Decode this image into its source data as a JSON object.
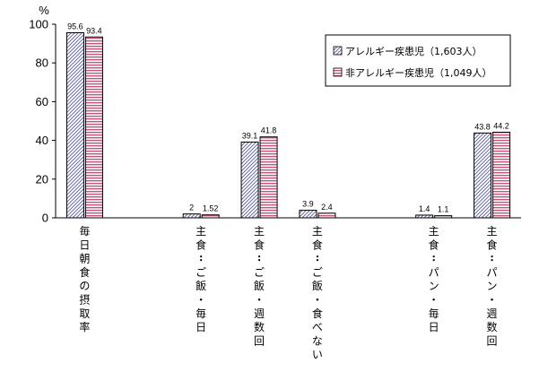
{
  "chart_data": {
    "type": "bar",
    "unit_label": "%",
    "ylim": [
      0,
      100
    ],
    "yticks": [
      0,
      20,
      40,
      60,
      80,
      100
    ],
    "legend_position": "top-right",
    "categories": [
      "毎日朝食の摂取率",
      "",
      "主食：ご飯・毎日",
      "主食：ご飯・週数回",
      "主食：ご飯・食べない",
      "",
      "主食：パン・毎日",
      "主食：パン・週数回"
    ],
    "series": [
      {
        "name": "アレルギー疾患児（1,603人）",
        "pattern": "diagonal-hatch",
        "color": "#6a6ab8",
        "values": [
          95.6,
          null,
          2,
          39.1,
          3.9,
          null,
          1.4,
          43.8
        ],
        "data_labels": [
          "95.6",
          "",
          "2",
          "39.1",
          "3.9",
          "",
          "1.4",
          "43.8"
        ]
      },
      {
        "name": "非アレルギー疾患児（1,049人）",
        "pattern": "horizontal-stripe",
        "color": "#c25578",
        "values": [
          93.4,
          null,
          1.52,
          41.8,
          2.4,
          null,
          1.1,
          44.2
        ],
        "data_labels": [
          "93.4",
          "",
          "1.52",
          "41.8",
          "2.4",
          "",
          "1.1",
          "44.2"
        ]
      }
    ]
  }
}
